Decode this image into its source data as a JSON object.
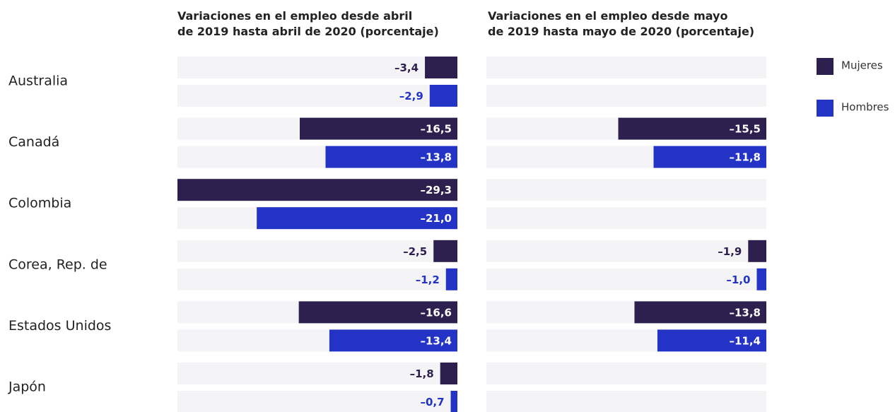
{
  "chart_data": [
    {
      "type": "bar",
      "orientation": "horizontal",
      "title": [
        "Variaciones en el empleo desde abril",
        "de 2019 hasta abril de 2020 (porcentaje)"
      ],
      "categories": [
        "Australia",
        "Canadá",
        "Colombia",
        "Corea, Rep. de",
        "Estados Unidos",
        "Japón"
      ],
      "series": [
        {
          "name": "Mujeres",
          "color": "#2d1f4e",
          "values": [
            -3.4,
            -16.5,
            -29.3,
            -2.5,
            -16.6,
            -1.8
          ],
          "value_labels": [
            "–3,4",
            "–16,5",
            "–29,3",
            "–2,5",
            "–16,6",
            "–1,8"
          ]
        },
        {
          "name": "Hombres",
          "color": "#2333c6",
          "values": [
            -2.9,
            -13.8,
            -21.0,
            -1.2,
            -13.4,
            -0.7
          ],
          "value_labels": [
            "–2,9",
            "–13,8",
            "–21,0",
            "–1,2",
            "–13,4",
            "–0,7"
          ]
        }
      ]
    },
    {
      "type": "bar",
      "orientation": "horizontal",
      "title": [
        "Variaciones en el empleo desde mayo",
        "de 2019 hasta mayo de 2020 (porcentaje)"
      ],
      "categories": [
        "Australia",
        "Canadá",
        "Colombia",
        "Corea, Rep. de",
        "Estados Unidos",
        "Japón"
      ],
      "series": [
        {
          "name": "Mujeres",
          "color": "#2d1f4e",
          "values": [
            null,
            -15.5,
            null,
            -1.9,
            -13.8,
            null
          ],
          "value_labels": [
            null,
            "–15,5",
            null,
            "–1,9",
            "–13,8",
            null
          ]
        },
        {
          "name": "Hombres",
          "color": "#2333c6",
          "values": [
            null,
            -11.8,
            null,
            -1.0,
            -11.4,
            null
          ],
          "value_labels": [
            null,
            "–11,8",
            null,
            "–1,0",
            "–11,4",
            null
          ]
        }
      ]
    }
  ]
}
